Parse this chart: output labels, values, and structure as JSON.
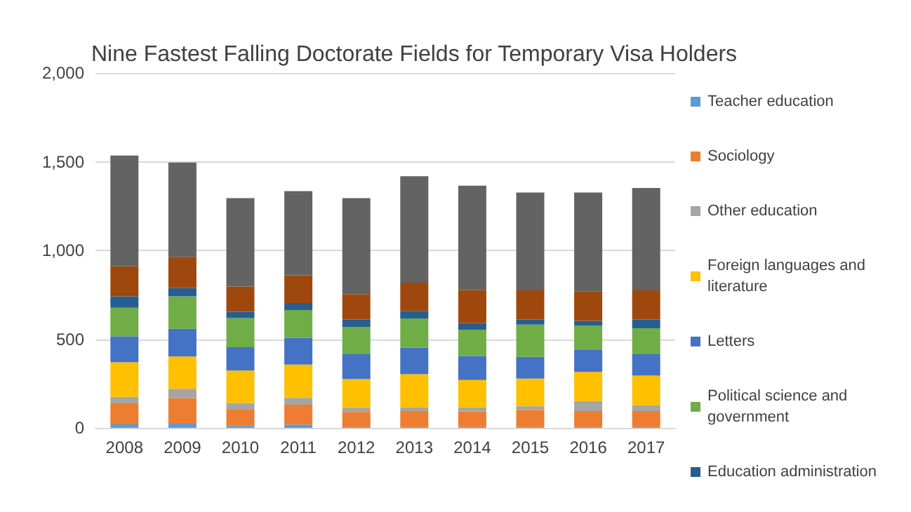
{
  "chart_data": {
    "type": "bar",
    "stacked": true,
    "title": "Nine Fastest Falling Doctorate Fields for Temporary Visa Holders",
    "categories": [
      "2008",
      "2009",
      "2010",
      "2011",
      "2012",
      "2013",
      "2014",
      "2015",
      "2016",
      "2017"
    ],
    "series": [
      {
        "name": "Teacher education",
        "color": "#5b9bd5",
        "values": [
          20,
          24,
          11,
          19,
          5,
          5,
          5,
          5,
          5,
          5
        ]
      },
      {
        "name": "Sociology",
        "color": "#ed7d31",
        "values": [
          118,
          143,
          92,
          111,
          85,
          90,
          88,
          96,
          90,
          90
        ]
      },
      {
        "name": "Other education",
        "color": "#a5a5a5",
        "values": [
          37,
          53,
          37,
          39,
          24,
          21,
          23,
          21,
          56,
          32
        ]
      },
      {
        "name": "Foreign languages and literature",
        "color": "#ffc000",
        "values": [
          195,
          182,
          183,
          188,
          161,
          186,
          154,
          156,
          164,
          167
        ]
      },
      {
        "name": "Letters",
        "color": "#4472c4",
        "values": [
          146,
          156,
          132,
          151,
          140,
          150,
          135,
          122,
          127,
          121
        ]
      },
      {
        "name": "Political science and government",
        "color": "#70ad47",
        "values": [
          161,
          183,
          164,
          156,
          154,
          165,
          148,
          182,
          135,
          146
        ]
      },
      {
        "name": "Education administration",
        "color": "#255e91",
        "values": [
          64,
          47,
          35,
          40,
          42,
          42,
          37,
          29,
          26,
          50
        ]
      },
      {
        "color": "#9e480e",
        "values": [
          169,
          175,
          142,
          156,
          143,
          159,
          188,
          164,
          167,
          164
        ]
      },
      {
        "color": "#636363",
        "values": [
          625,
          532,
          498,
          474,
          540,
          600,
          587,
          551,
          556,
          577
        ]
      }
    ],
    "ylim": [
      0,
      2000
    ],
    "yticks": [
      0,
      500,
      {
        "value": 1000,
        "label": "1,000"
      },
      {
        "value": 1500,
        "label": "1,500"
      },
      {
        "value": 2000,
        "label": "2,000"
      }
    ],
    "grid": "y",
    "legend": "right"
  }
}
